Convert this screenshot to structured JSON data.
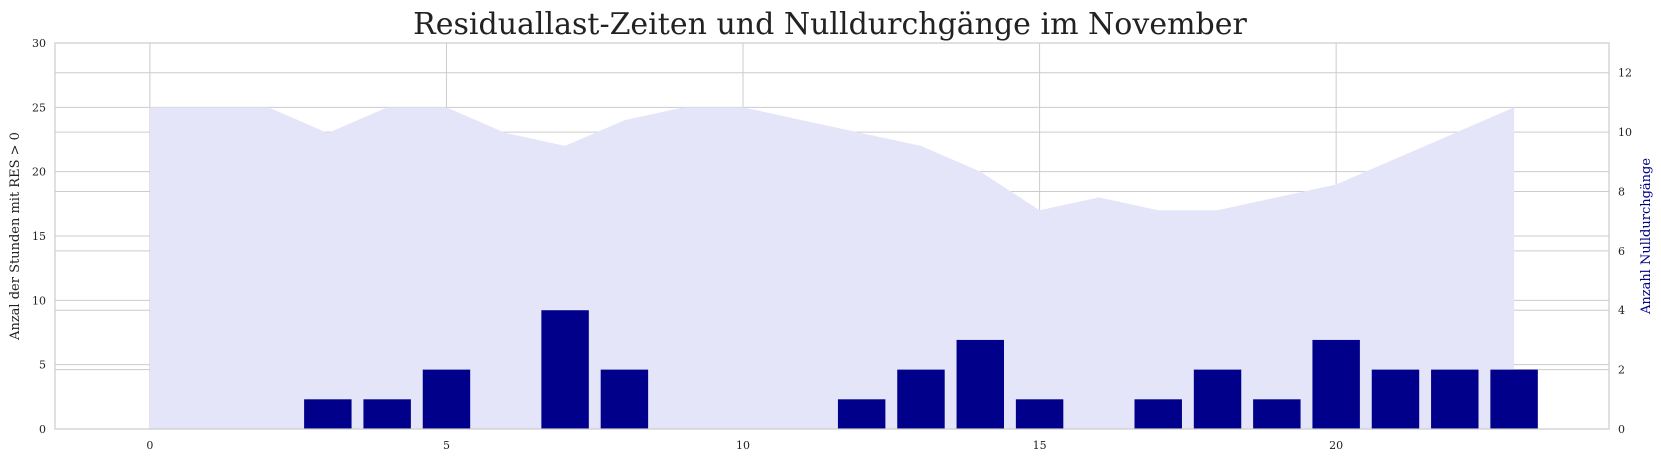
{
  "chart_data": {
    "type": "bar",
    "title": "Residuallast-Zeiten und Nulldurchgänge im November",
    "ylabel": "Anzal der Stunden mit RES > 0",
    "y2label": "Anzahl Nulldurchgänge",
    "x": [
      0,
      1,
      2,
      3,
      4,
      5,
      6,
      7,
      8,
      9,
      10,
      11,
      12,
      13,
      14,
      15,
      16,
      17,
      18,
      19,
      20,
      21,
      22,
      23
    ],
    "xlim": [
      -1.6,
      24.6
    ],
    "xticks": [
      0,
      5,
      10,
      15,
      20
    ],
    "ylim": [
      0,
      30
    ],
    "yticks": [
      0,
      5,
      10,
      15,
      20,
      25,
      30
    ],
    "y2lim": [
      0,
      13
    ],
    "y2ticks": [
      0,
      2,
      4,
      6,
      8,
      10,
      12
    ],
    "grid": true,
    "series": [
      {
        "kind": "area",
        "axis": "left",
        "color": "#e5e5fa",
        "values": [
          25,
          25,
          25,
          23,
          25,
          25,
          23,
          22,
          24,
          25,
          25,
          24,
          23,
          22,
          20,
          17,
          18,
          17,
          17,
          18,
          19,
          21,
          23,
          25
        ]
      },
      {
        "kind": "bar",
        "axis": "right",
        "color": "#00008b",
        "values": [
          0,
          0,
          0,
          1,
          1,
          2,
          0,
          4,
          2,
          0,
          0,
          0,
          1,
          2,
          3,
          1,
          0,
          1,
          2,
          1,
          3,
          2,
          2,
          2
        ]
      }
    ],
    "colors": {
      "grid": "#cccccc",
      "axis": "#cccccc",
      "y2label": "#00008b",
      "text": "#222222"
    }
  }
}
